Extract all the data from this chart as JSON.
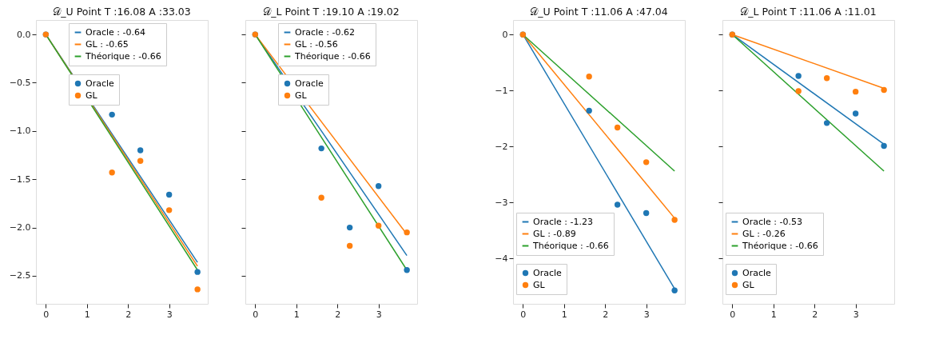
{
  "chart_data": [
    {
      "type": "line",
      "title": "𝒟_U Point T :16.08  A :33.03",
      "xlim": [
        -0.24,
        3.94
      ],
      "ylim": [
        -2.79,
        0.15
      ],
      "xticks": [
        0,
        1,
        2,
        3
      ],
      "yticks": [
        {
          "value": 0,
          "label": "0.0"
        },
        {
          "value": -0.5,
          "label": "−0.5"
        },
        {
          "value": -1.0,
          "label": "−1.0"
        },
        {
          "value": -1.5,
          "label": "−1.5"
        },
        {
          "value": -2.0,
          "label": "−2.0"
        },
        {
          "value": -2.5,
          "label": "−2.5"
        }
      ],
      "grid": false,
      "legend": "top right",
      "series": [
        {
          "name": "Oracle : -0.64",
          "type": "line",
          "color": "#1f77b4",
          "x": [
            0,
            3.69
          ],
          "values": [
            0,
            -2.36
          ]
        },
        {
          "name": "GL : -0.65",
          "type": "line",
          "color": "#ff7f0e",
          "x": [
            0,
            3.69
          ],
          "values": [
            0,
            -2.4
          ]
        },
        {
          "name": "Théorique : -0.66",
          "type": "line",
          "color": "#2ca02c",
          "x": [
            0,
            3.69
          ],
          "values": [
            0,
            -2.44
          ]
        },
        {
          "name": "Oracle",
          "type": "scatter",
          "marker": "circle",
          "color": "#1f77b4",
          "x": [
            0,
            1.61,
            2.3,
            3.0,
            3.69
          ],
          "values": [
            0,
            -0.83,
            -1.2,
            -1.66,
            -2.46
          ]
        },
        {
          "name": "GL",
          "type": "scatter",
          "marker": "circle",
          "color": "#ff7f0e",
          "x": [
            0,
            1.61,
            2.3,
            3.0,
            3.69
          ],
          "values": [
            0,
            -1.43,
            -1.31,
            -1.82,
            -2.64
          ]
        }
      ]
    },
    {
      "type": "line",
      "title": "𝒟_L Point T :19.10  A :19.02",
      "xlim": [
        -0.24,
        3.94
      ],
      "ylim": [
        -2.79,
        0.15
      ],
      "xticks": [
        0,
        1,
        2,
        3
      ],
      "yticks": [
        {
          "value": 0,
          "label": null
        },
        {
          "value": -0.5,
          "label": null
        },
        {
          "value": -1.0,
          "label": null
        },
        {
          "value": -1.5,
          "label": null
        },
        {
          "value": -2.0,
          "label": null
        },
        {
          "value": -2.5,
          "label": null
        }
      ],
      "grid": false,
      "legend": "top right",
      "tick_labels": "x",
      "series": [
        {
          "name": "Oracle : -0.62",
          "type": "line",
          "color": "#1f77b4",
          "x": [
            0,
            3.69
          ],
          "values": [
            0,
            -2.29
          ]
        },
        {
          "name": "GL : -0.56",
          "type": "line",
          "color": "#ff7f0e",
          "x": [
            0,
            3.69
          ],
          "values": [
            0,
            -2.07
          ]
        },
        {
          "name": "Théorique : -0.66",
          "type": "line",
          "color": "#2ca02c",
          "x": [
            0,
            3.69
          ],
          "values": [
            0,
            -2.44
          ]
        },
        {
          "name": "Oracle",
          "type": "scatter",
          "marker": "circle",
          "color": "#1f77b4",
          "x": [
            0,
            1.61,
            2.3,
            3.0,
            3.69
          ],
          "values": [
            0,
            -1.18,
            -2.0,
            -1.57,
            -2.44
          ]
        },
        {
          "name": "GL",
          "type": "scatter",
          "marker": "circle",
          "color": "#ff7f0e",
          "x": [
            0,
            1.61,
            2.3,
            3.0,
            3.69
          ],
          "values": [
            0,
            -1.69,
            -2.19,
            -1.98,
            -2.05
          ]
        }
      ]
    },
    {
      "type": "line",
      "title": "𝒟_U Point T :11.06  A :47.04",
      "xlim": [
        -0.24,
        3.94
      ],
      "ylim": [
        -4.81,
        0.26
      ],
      "xticks": [
        0,
        1,
        2,
        3
      ],
      "yticks": [
        0,
        {
          "value": -1,
          "label": "−1"
        },
        {
          "value": -2,
          "label": "−2"
        },
        {
          "value": -3,
          "label": "−3"
        },
        {
          "value": -4,
          "label": "−4"
        }
      ],
      "grid": false,
      "legend": "bottom left",
      "series": [
        {
          "name": "Oracle : -1.23",
          "type": "line",
          "color": "#1f77b4",
          "x": [
            0,
            3.69
          ],
          "values": [
            0,
            -4.54
          ]
        },
        {
          "name": "GL : -0.89",
          "type": "line",
          "color": "#ff7f0e",
          "x": [
            0,
            3.69
          ],
          "values": [
            0,
            -3.28
          ]
        },
        {
          "name": "Théorique : -0.66",
          "type": "line",
          "color": "#2ca02c",
          "x": [
            0,
            3.69
          ],
          "values": [
            0,
            -2.44
          ]
        },
        {
          "name": "Oracle",
          "type": "scatter",
          "marker": "circle",
          "color": "#1f77b4",
          "x": [
            0,
            1.61,
            2.3,
            3.0,
            3.69
          ],
          "values": [
            0,
            -1.36,
            -3.04,
            -3.19,
            -4.57
          ]
        },
        {
          "name": "GL",
          "type": "scatter",
          "marker": "circle",
          "color": "#ff7f0e",
          "x": [
            0,
            1.61,
            2.3,
            3.0,
            3.69
          ],
          "values": [
            0,
            -0.75,
            -1.66,
            -2.28,
            -3.31
          ]
        }
      ]
    },
    {
      "type": "line",
      "title": "𝒟_L Point T :11.06  A :11.01",
      "xlim": [
        -0.24,
        3.94
      ],
      "ylim": [
        -4.81,
        0.26
      ],
      "xticks": [
        0,
        1,
        2,
        3
      ],
      "yticks": [
        {
          "value": 0,
          "label": null
        },
        {
          "value": -1,
          "label": null
        },
        {
          "value": -2,
          "label": null
        },
        {
          "value": -3,
          "label": null
        },
        {
          "value": -4,
          "label": null
        }
      ],
      "grid": false,
      "legend": "bottom left",
      "tick_labels": "x",
      "series": [
        {
          "name": "Oracle : -0.53",
          "type": "line",
          "color": "#1f77b4",
          "x": [
            0,
            3.69
          ],
          "values": [
            0,
            -1.96
          ]
        },
        {
          "name": "GL : -0.26",
          "type": "line",
          "color": "#ff7f0e",
          "x": [
            0,
            3.69
          ],
          "values": [
            0,
            -0.96
          ]
        },
        {
          "name": "Théorique : -0.66",
          "type": "line",
          "color": "#2ca02c",
          "x": [
            0,
            3.69
          ],
          "values": [
            0,
            -2.44
          ]
        },
        {
          "name": "Oracle",
          "type": "scatter",
          "marker": "circle",
          "color": "#1f77b4",
          "x": [
            0,
            1.61,
            2.3,
            3.0,
            3.69
          ],
          "values": [
            0,
            -0.74,
            -1.58,
            -1.41,
            -1.99
          ]
        },
        {
          "name": "GL",
          "type": "scatter",
          "marker": "circle",
          "color": "#ff7f0e",
          "x": [
            0,
            1.61,
            2.3,
            3.0,
            3.69
          ],
          "values": [
            0,
            -1.01,
            -0.78,
            -1.02,
            -0.99
          ]
        }
      ]
    }
  ]
}
